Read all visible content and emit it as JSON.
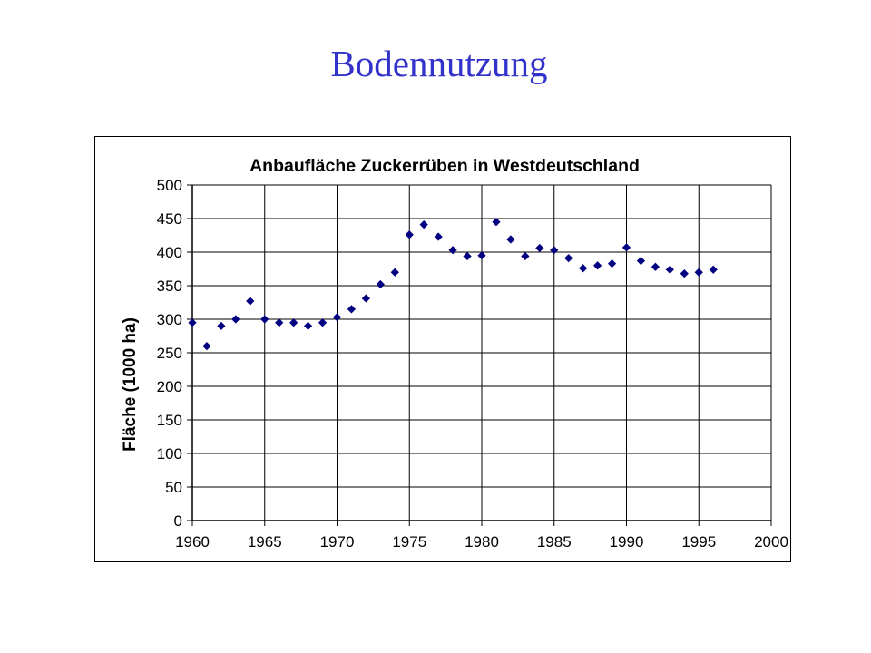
{
  "slide": {
    "title": "Bodennutzung"
  },
  "colors": {
    "title": "#3333cc",
    "marker": "#000080",
    "grid": "#000000"
  },
  "chart_data": {
    "type": "scatter",
    "title": "Anbaufläche Zuckerrüben in Westdeutschland",
    "xlabel": "",
    "ylabel": "Fläche (1000 ha)",
    "xlim": [
      1960,
      2000
    ],
    "ylim": [
      0,
      500
    ],
    "xticks": [
      1960,
      1965,
      1970,
      1975,
      1980,
      1985,
      1990,
      1995,
      2000
    ],
    "yticks": [
      0,
      50,
      100,
      150,
      200,
      250,
      300,
      350,
      400,
      450,
      500
    ],
    "grid": true,
    "legend": "none",
    "marker": "diamond",
    "series": [
      {
        "x": [
          1960,
          1961,
          1962,
          1963,
          1964,
          1965,
          1966,
          1967,
          1968,
          1969,
          1970,
          1971,
          1972,
          1973,
          1974,
          1975,
          1976,
          1977,
          1978,
          1979,
          1980,
          1981,
          1982,
          1983,
          1984,
          1985,
          1986,
          1987,
          1988,
          1989,
          1990,
          1991,
          1992,
          1993,
          1994,
          1995,
          1996
        ],
        "y": [
          295,
          260,
          290,
          300,
          327,
          300,
          295,
          295,
          290,
          295,
          303,
          315,
          331,
          352,
          370,
          426,
          441,
          423,
          403,
          394,
          395,
          445,
          419,
          394,
          406,
          403,
          391,
          376,
          380,
          383,
          407,
          387,
          378,
          374,
          368,
          370,
          374
        ]
      }
    ]
  }
}
